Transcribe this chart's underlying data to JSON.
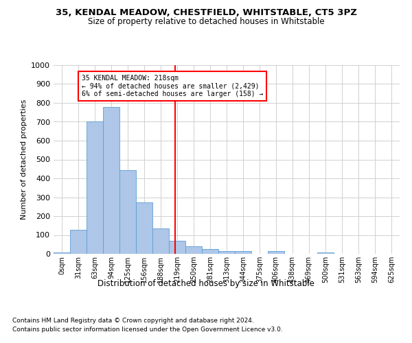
{
  "title1": "35, KENDAL MEADOW, CHESTFIELD, WHITSTABLE, CT5 3PZ",
  "title2": "Size of property relative to detached houses in Whitstable",
  "xlabel": "Distribution of detached houses by size in Whitstable",
  "ylabel": "Number of detached properties",
  "bar_color": "#aec6e8",
  "bar_edge_color": "#5a9fd4",
  "x_labels": [
    "0sqm",
    "31sqm",
    "63sqm",
    "94sqm",
    "125sqm",
    "156sqm",
    "188sqm",
    "219sqm",
    "250sqm",
    "281sqm",
    "313sqm",
    "344sqm",
    "375sqm",
    "406sqm",
    "438sqm",
    "469sqm",
    "500sqm",
    "531sqm",
    "563sqm",
    "594sqm",
    "625sqm"
  ],
  "bar_values": [
    8,
    128,
    700,
    778,
    443,
    272,
    133,
    70,
    40,
    25,
    13,
    13,
    0,
    13,
    0,
    0,
    8,
    0,
    0,
    0,
    0
  ],
  "ylim": [
    0,
    1000
  ],
  "yticks": [
    0,
    100,
    200,
    300,
    400,
    500,
    600,
    700,
    800,
    900,
    1000
  ],
  "vline_x": 6.88,
  "annotation_text": "35 KENDAL MEADOW: 218sqm\n← 94% of detached houses are smaller (2,429)\n6% of semi-detached houses are larger (158) →",
  "footnote1": "Contains HM Land Registry data © Crown copyright and database right 2024.",
  "footnote2": "Contains public sector information licensed under the Open Government Licence v3.0.",
  "bg_color": "#ffffff",
  "grid_color": "#d0d0d0"
}
